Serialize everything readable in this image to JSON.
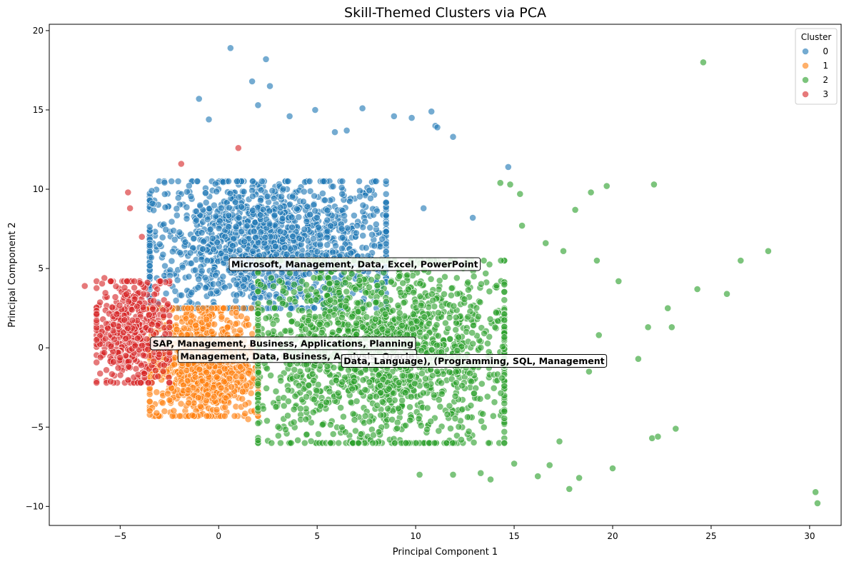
{
  "chart_data": {
    "type": "scatter",
    "title": "Skill-Themed Clusters via PCA",
    "xlabel": "Principal Component 1",
    "ylabel": "Principal Component 2",
    "xlim": [
      -8.6,
      31.6
    ],
    "ylim": [
      -11.2,
      20.4
    ],
    "xticks": [
      -5,
      0,
      5,
      10,
      15,
      20,
      25,
      30
    ],
    "yticks": [
      -10,
      -5,
      0,
      5,
      10,
      15,
      20
    ],
    "grid": false,
    "legend": {
      "title": "Cluster",
      "position": "top-right"
    },
    "series": [
      {
        "name": "0",
        "color": "#1f77b4",
        "core": {
          "x_range": [
            -3.5,
            8.5
          ],
          "y_range": [
            2.5,
            10.5
          ],
          "approx_count": 1500
        },
        "points": [
          [
            0.6,
            18.9
          ],
          [
            2.4,
            18.2
          ],
          [
            -1.0,
            15.7
          ],
          [
            1.7,
            16.8
          ],
          [
            2.0,
            15.3
          ],
          [
            7.3,
            15.1
          ],
          [
            10.8,
            14.9
          ],
          [
            4.9,
            15.0
          ],
          [
            8.9,
            14.6
          ],
          [
            11.9,
            13.3
          ],
          [
            11.0,
            14.0
          ],
          [
            9.8,
            14.5
          ],
          [
            12.9,
            8.2
          ],
          [
            14.7,
            11.4
          ],
          [
            2.6,
            16.5
          ],
          [
            -0.5,
            14.4
          ],
          [
            6.5,
            13.7
          ],
          [
            3.6,
            14.6
          ],
          [
            11.1,
            13.9
          ],
          [
            5.9,
            13.6
          ],
          [
            -3.4,
            9.9
          ],
          [
            10.4,
            8.8
          ]
        ]
      },
      {
        "name": "1",
        "color": "#ff7f0e",
        "core": {
          "x_range": [
            -3.5,
            2.0
          ],
          "y_range": [
            -4.3,
            2.5
          ],
          "approx_count": 1000
        },
        "points": [
          [
            -3.4,
            -2.2
          ],
          [
            -2.5,
            -3.3
          ],
          [
            1.5,
            -4.5
          ],
          [
            -0.1,
            -3.9
          ]
        ]
      },
      {
        "name": "2",
        "color": "#2ca02c",
        "core": {
          "x_range": [
            2.0,
            14.5
          ],
          "y_range": [
            -6.0,
            5.5
          ],
          "approx_count": 1800
        },
        "points": [
          [
            24.6,
            18.0
          ],
          [
            30.3,
            -9.1
          ],
          [
            30.4,
            -9.8
          ],
          [
            27.9,
            6.1
          ],
          [
            26.5,
            5.5
          ],
          [
            25.8,
            3.4
          ],
          [
            24.3,
            3.7
          ],
          [
            22.1,
            10.3
          ],
          [
            19.7,
            10.2
          ],
          [
            18.9,
            9.8
          ],
          [
            22.8,
            2.5
          ],
          [
            23.0,
            1.3
          ],
          [
            21.3,
            -0.7
          ],
          [
            23.2,
            -5.1
          ],
          [
            20.0,
            -7.6
          ],
          [
            17.8,
            -8.9
          ],
          [
            10.2,
            -8.0
          ],
          [
            13.8,
            -8.3
          ],
          [
            11.9,
            -8.0
          ],
          [
            19.2,
            5.5
          ],
          [
            21.8,
            1.3
          ],
          [
            22.0,
            -5.7
          ],
          [
            22.3,
            -5.6
          ],
          [
            20.3,
            4.2
          ],
          [
            17.5,
            6.1
          ],
          [
            18.1,
            8.7
          ],
          [
            16.6,
            6.6
          ],
          [
            15.4,
            7.7
          ],
          [
            15.3,
            9.7
          ],
          [
            14.3,
            10.4
          ],
          [
            14.8,
            10.3
          ],
          [
            18.8,
            -1.5
          ],
          [
            19.3,
            0.8
          ],
          [
            16.2,
            -8.1
          ],
          [
            18.3,
            -8.2
          ],
          [
            17.3,
            -5.9
          ],
          [
            16.8,
            -7.4
          ],
          [
            13.3,
            -7.9
          ],
          [
            15.0,
            -7.3
          ]
        ]
      },
      {
        "name": "3",
        "color": "#d62728",
        "core": {
          "x_range": [
            -6.2,
            -2.5
          ],
          "y_range": [
            -2.2,
            4.2
          ],
          "approx_count": 500
        },
        "points": [
          [
            -6.8,
            3.9
          ],
          [
            -4.6,
            9.8
          ],
          [
            -4.5,
            8.8
          ],
          [
            -1.9,
            11.6
          ],
          [
            1.0,
            12.6
          ],
          [
            -3.9,
            7.0
          ],
          [
            -6.2,
            0.5
          ],
          [
            -6.0,
            -0.6
          ],
          [
            -5.7,
            -1.4
          ],
          [
            -5.8,
            4.4
          ]
        ]
      }
    ],
    "annotations": [
      {
        "text": "Microsoft, Management, Data, Excel, PowerPoint",
        "x": 0.5,
        "y": 5.3
      },
      {
        "text": "SAP, Management, Business, Applications, Planning",
        "x": -3.5,
        "y": 0.3
      },
      {
        "text": "Management, Data, Business, Analysis, Oracle",
        "x": -2.1,
        "y": -0.5
      },
      {
        "text": "Data, Language), (Programming, SQL, Management",
        "x": 6.2,
        "y": -0.8
      }
    ]
  }
}
